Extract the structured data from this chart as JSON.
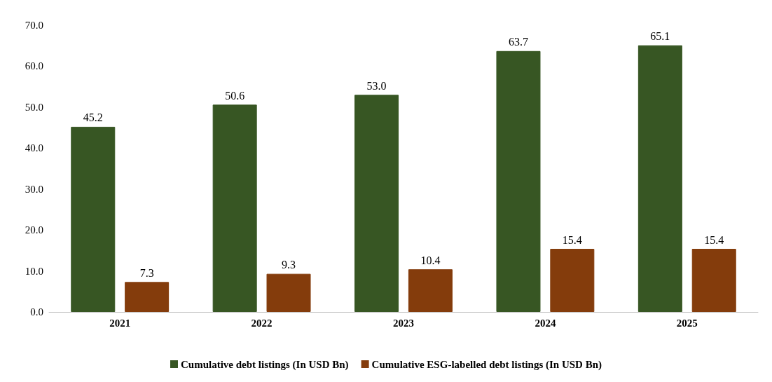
{
  "chart_data": {
    "type": "bar",
    "categories": [
      "2021",
      "2022",
      "2023",
      "2024",
      "2025"
    ],
    "series": [
      {
        "name": "Cumulative debt listings (In USD Bn)",
        "color": "#375623",
        "values": [
          45.2,
          50.6,
          53.0,
          63.7,
          65.1
        ],
        "value_labels": [
          "45.2",
          "50.6",
          "53.0",
          "63.7",
          "65.1"
        ]
      },
      {
        "name": "Cumulative ESG-labelled debt listings (In USD Bn)",
        "color": "#843c0c",
        "values": [
          7.3,
          9.3,
          10.4,
          15.4,
          15.4
        ],
        "value_labels": [
          "7.3",
          "9.3",
          "10.4",
          "15.4",
          "15.4"
        ]
      }
    ],
    "ylim": [
      0,
      70
    ],
    "yticks": [
      {
        "value": 0,
        "label": "0.0"
      },
      {
        "value": 10,
        "label": "10.0"
      },
      {
        "value": 20,
        "label": "20.0"
      },
      {
        "value": 30,
        "label": "30.0"
      },
      {
        "value": 40,
        "label": "40.0"
      },
      {
        "value": 50,
        "label": "50.0"
      },
      {
        "value": 60,
        "label": "60.0"
      },
      {
        "value": 70,
        "label": "70.0"
      }
    ],
    "grid": false,
    "legend": "bottom"
  }
}
